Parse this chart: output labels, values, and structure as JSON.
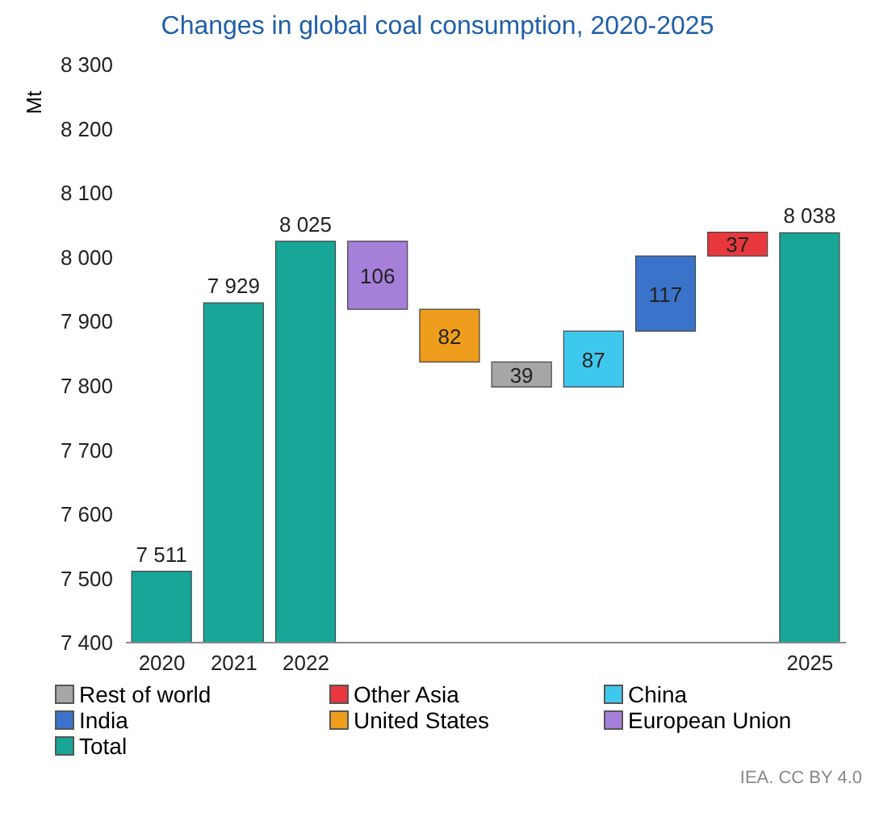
{
  "chart_data": {
    "type": "bar",
    "title": "Changes in global coal consumption, 2020-2025",
    "ylabel": "Mt",
    "categories": [
      "2020",
      "2021",
      "2022",
      null,
      null,
      null,
      null,
      null,
      null,
      "2025"
    ],
    "series": [
      {
        "name": "Rest of world",
        "color": "#a6a6a6",
        "values": [
          null,
          null,
          null,
          null,
          null,
          39,
          null,
          null,
          null,
          null
        ],
        "base": [
          null,
          null,
          null,
          null,
          null,
          7798,
          null,
          null,
          null,
          null
        ]
      },
      {
        "name": "Other Asia",
        "color": "#e8383d",
        "values": [
          null,
          null,
          null,
          null,
          null,
          null,
          null,
          null,
          37,
          null
        ],
        "base": [
          null,
          null,
          null,
          null,
          null,
          null,
          null,
          null,
          8002,
          null
        ]
      },
      {
        "name": "China",
        "color": "#3fc8ee",
        "values": [
          null,
          null,
          null,
          null,
          null,
          null,
          87,
          null,
          null,
          null
        ],
        "base": [
          null,
          null,
          null,
          null,
          null,
          null,
          7798,
          null,
          null,
          null
        ]
      },
      {
        "name": "India",
        "color": "#3a73c9",
        "values": [
          null,
          null,
          null,
          null,
          null,
          null,
          null,
          117,
          null,
          null
        ],
        "base": [
          null,
          null,
          null,
          null,
          null,
          null,
          null,
          7885,
          null,
          null
        ]
      },
      {
        "name": "United States",
        "color": "#ef9d1d",
        "values": [
          null,
          null,
          null,
          null,
          82,
          null,
          null,
          null,
          null,
          null
        ],
        "base": [
          null,
          null,
          null,
          null,
          7837,
          null,
          null,
          null,
          null,
          null
        ]
      },
      {
        "name": "European Union",
        "color": "#a57fd8",
        "values": [
          null,
          null,
          null,
          106,
          null,
          null,
          null,
          null,
          null,
          null
        ],
        "base": [
          null,
          null,
          null,
          7919,
          null,
          null,
          null,
          null,
          null,
          null
        ]
      },
      {
        "name": "Total",
        "color": "#17a698",
        "values": [
          7511,
          7929,
          8025,
          null,
          null,
          null,
          null,
          null,
          null,
          8038
        ]
      }
    ],
    "value_labels": [
      "7 511",
      "7 929",
      "8 025",
      "106",
      "82",
      "39",
      "87",
      "117",
      "37",
      "8 038"
    ],
    "ylim": [
      7400,
      8300
    ],
    "yticks": [
      {
        "value": 7400,
        "label": "7 400"
      },
      {
        "value": 7500,
        "label": "7 500"
      },
      {
        "value": 7600,
        "label": "7 600"
      },
      {
        "value": 7700,
        "label": "7 700"
      },
      {
        "value": 7800,
        "label": "7 800"
      },
      {
        "value": 7900,
        "label": "7 900"
      },
      {
        "value": 8000,
        "label": "8 000"
      },
      {
        "value": 8100,
        "label": "8 100"
      },
      {
        "value": 8200,
        "label": "8 200"
      },
      {
        "value": 8300,
        "label": "8 300"
      }
    ],
    "grid": false,
    "legend": "bottom",
    "annotations": [
      "IEA. CC BY 4.0"
    ]
  }
}
